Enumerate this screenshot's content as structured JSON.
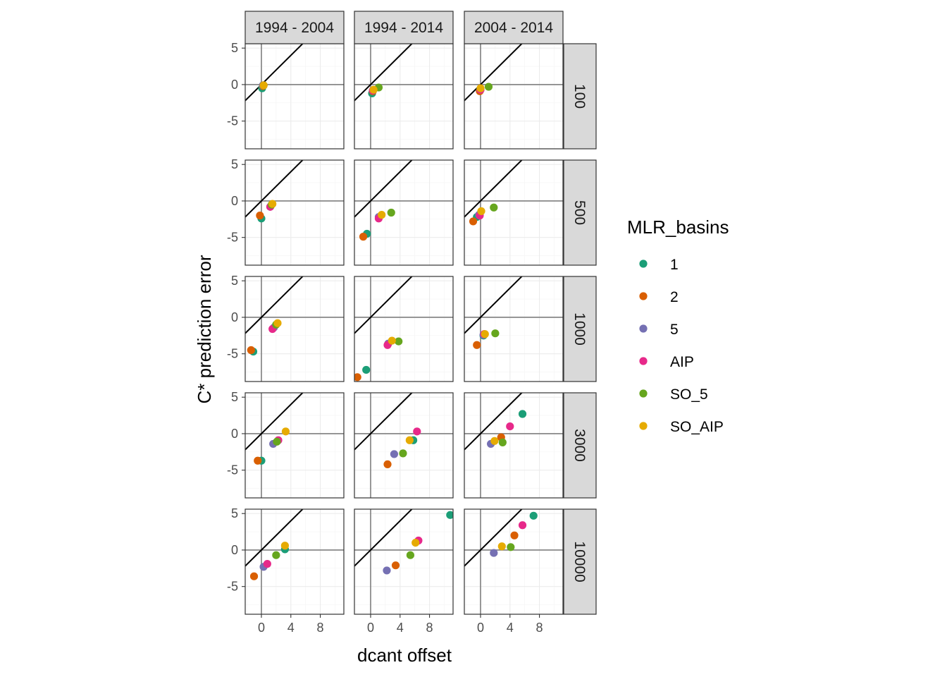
{
  "chart_data": {
    "type": "scatter",
    "title": "",
    "xlabel": "dcant offset",
    "ylabel": "C* prediction error",
    "xlim": [
      -2.2,
      11.2
    ],
    "ylim": [
      -8.8,
      5.6
    ],
    "xticks": [
      0,
      4,
      8
    ],
    "yticks": [
      -5,
      0,
      5
    ],
    "grid": true,
    "reference_lines": {
      "h": 0,
      "v": 0,
      "diagonal_slope": 1
    },
    "col_facets": [
      "1994 - 2004",
      "1994 - 2014",
      "2004 - 2014"
    ],
    "row_facets": [
      "100",
      "500",
      "1000",
      "3000",
      "10000"
    ],
    "legend": {
      "title": "MLR_basins",
      "position": "right",
      "entries": [
        {
          "name": "1",
          "color": "#1B9E77"
        },
        {
          "name": "2",
          "color": "#D95F02"
        },
        {
          "name": "5",
          "color": "#7570B3"
        },
        {
          "name": "AIP",
          "color": "#E7298A"
        },
        {
          "name": "SO_5",
          "color": "#66A61E"
        },
        {
          "name": "SO_AIP",
          "color": "#E6AB02"
        }
      ]
    },
    "panels": [
      {
        "row": "100",
        "col": "1994 - 2004",
        "points": [
          {
            "basin": "1",
            "x": 0.1,
            "y": -0.5
          },
          {
            "basin": "2",
            "x": 0.2,
            "y": -0.2
          },
          {
            "basin": "5",
            "x": 0.2,
            "y": -0.1
          },
          {
            "basin": "AIP",
            "x": 0.3,
            "y": -0.1
          },
          {
            "basin": "SO_5",
            "x": 0.3,
            "y": -0.1
          },
          {
            "basin": "SO_AIP",
            "x": 0.3,
            "y": -0.1
          }
        ]
      },
      {
        "row": "100",
        "col": "1994 - 2014",
        "points": [
          {
            "basin": "1",
            "x": 0.2,
            "y": -1.2
          },
          {
            "basin": "2",
            "x": 0.3,
            "y": -0.9
          },
          {
            "basin": "5",
            "x": 0.3,
            "y": -0.8
          },
          {
            "basin": "AIP",
            "x": 0.3,
            "y": -0.8
          },
          {
            "basin": "SO_5",
            "x": 1.1,
            "y": -0.4
          },
          {
            "basin": "SO_AIP",
            "x": 0.4,
            "y": -0.7
          }
        ]
      },
      {
        "row": "100",
        "col": "2004 - 2014",
        "points": [
          {
            "basin": "1",
            "x": -0.1,
            "y": -0.8
          },
          {
            "basin": "2",
            "x": -0.1,
            "y": -0.9
          },
          {
            "basin": "5",
            "x": 0.0,
            "y": -0.7
          },
          {
            "basin": "AIP",
            "x": 0.0,
            "y": -0.7
          },
          {
            "basin": "SO_5",
            "x": 1.1,
            "y": -0.3
          },
          {
            "basin": "SO_AIP",
            "x": 0.0,
            "y": -0.5
          }
        ]
      },
      {
        "row": "500",
        "col": "1994 - 2004",
        "points": [
          {
            "basin": "1",
            "x": 0.0,
            "y": -2.4
          },
          {
            "basin": "2",
            "x": -0.2,
            "y": -2.0
          },
          {
            "basin": "5",
            "x": 1.2,
            "y": -0.8
          },
          {
            "basin": "AIP",
            "x": 1.2,
            "y": -0.8
          },
          {
            "basin": "SO_5",
            "x": 1.4,
            "y": -0.5
          },
          {
            "basin": "SO_AIP",
            "x": 1.5,
            "y": -0.4
          }
        ]
      },
      {
        "row": "500",
        "col": "1994 - 2014",
        "points": [
          {
            "basin": "1",
            "x": -0.5,
            "y": -4.5
          },
          {
            "basin": "2",
            "x": -1.0,
            "y": -4.9
          },
          {
            "basin": "5",
            "x": 1.1,
            "y": -2.2
          },
          {
            "basin": "AIP",
            "x": 1.1,
            "y": -2.4
          },
          {
            "basin": "SO_5",
            "x": 2.8,
            "y": -1.6
          },
          {
            "basin": "SO_AIP",
            "x": 1.5,
            "y": -1.9
          }
        ]
      },
      {
        "row": "500",
        "col": "2004 - 2014",
        "points": [
          {
            "basin": "1",
            "x": -0.5,
            "y": -2.2
          },
          {
            "basin": "2",
            "x": -1.0,
            "y": -2.8
          },
          {
            "basin": "5",
            "x": -0.2,
            "y": -1.9
          },
          {
            "basin": "AIP",
            "x": -0.1,
            "y": -2.0
          },
          {
            "basin": "SO_5",
            "x": 1.8,
            "y": -0.9
          },
          {
            "basin": "SO_AIP",
            "x": 0.1,
            "y": -1.4
          }
        ]
      },
      {
        "row": "1000",
        "col": "1994 - 2004",
        "points": [
          {
            "basin": "1",
            "x": -1.1,
            "y": -4.7
          },
          {
            "basin": "2",
            "x": -1.4,
            "y": -4.5
          },
          {
            "basin": "5",
            "x": 1.7,
            "y": -1.4
          },
          {
            "basin": "AIP",
            "x": 1.5,
            "y": -1.6
          },
          {
            "basin": "SO_5",
            "x": 2.0,
            "y": -1.0
          },
          {
            "basin": "SO_AIP",
            "x": 2.2,
            "y": -0.8
          }
        ]
      },
      {
        "row": "1000",
        "col": "1994 - 2014",
        "points": [
          {
            "basin": "1",
            "x": -0.6,
            "y": -7.2
          },
          {
            "basin": "2",
            "x": -1.8,
            "y": -8.2
          },
          {
            "basin": "5",
            "x": 2.4,
            "y": -3.6
          },
          {
            "basin": "AIP",
            "x": 2.3,
            "y": -3.8
          },
          {
            "basin": "SO_5",
            "x": 3.8,
            "y": -3.3
          },
          {
            "basin": "SO_AIP",
            "x": 2.9,
            "y": -3.2
          }
        ]
      },
      {
        "row": "1000",
        "col": "2004 - 2014",
        "points": [
          {
            "basin": "1",
            "x": 0.4,
            "y": -2.5
          },
          {
            "basin": "2",
            "x": -0.5,
            "y": -3.8
          },
          {
            "basin": "5",
            "x": 0.4,
            "y": -2.4
          },
          {
            "basin": "AIP",
            "x": 0.5,
            "y": -2.3
          },
          {
            "basin": "SO_5",
            "x": 2.0,
            "y": -2.2
          },
          {
            "basin": "SO_AIP",
            "x": 0.6,
            "y": -2.3
          }
        ]
      },
      {
        "row": "3000",
        "col": "1994 - 2004",
        "points": [
          {
            "basin": "1",
            "x": 0.0,
            "y": -3.7
          },
          {
            "basin": "2",
            "x": -0.5,
            "y": -3.7
          },
          {
            "basin": "5",
            "x": 1.6,
            "y": -1.4
          },
          {
            "basin": "AIP",
            "x": 2.3,
            "y": -0.9
          },
          {
            "basin": "SO_5",
            "x": 2.1,
            "y": -1.1
          },
          {
            "basin": "SO_AIP",
            "x": 3.3,
            "y": 0.3
          }
        ]
      },
      {
        "row": "3000",
        "col": "1994 - 2014",
        "points": [
          {
            "basin": "1",
            "x": 5.8,
            "y": -0.9
          },
          {
            "basin": "2",
            "x": 2.3,
            "y": -4.2
          },
          {
            "basin": "5",
            "x": 3.2,
            "y": -2.8
          },
          {
            "basin": "AIP",
            "x": 6.3,
            "y": 0.3
          },
          {
            "basin": "SO_5",
            "x": 4.4,
            "y": -2.7
          },
          {
            "basin": "SO_AIP",
            "x": 5.3,
            "y": -0.9
          }
        ]
      },
      {
        "row": "3000",
        "col": "2004 - 2014",
        "points": [
          {
            "basin": "1",
            "x": 5.7,
            "y": 2.7
          },
          {
            "basin": "2",
            "x": 2.8,
            "y": -0.5
          },
          {
            "basin": "5",
            "x": 1.4,
            "y": -1.4
          },
          {
            "basin": "AIP",
            "x": 4.0,
            "y": 1.0
          },
          {
            "basin": "SO_5",
            "x": 3.0,
            "y": -1.2
          },
          {
            "basin": "SO_AIP",
            "x": 1.9,
            "y": -1.0
          }
        ]
      },
      {
        "row": "10000",
        "col": "1994 - 2004",
        "points": [
          {
            "basin": "1",
            "x": 3.2,
            "y": 0.1
          },
          {
            "basin": "2",
            "x": -1.0,
            "y": -3.6
          },
          {
            "basin": "5",
            "x": 0.3,
            "y": -2.3
          },
          {
            "basin": "AIP",
            "x": 0.8,
            "y": -1.9
          },
          {
            "basin": "SO_5",
            "x": 2.0,
            "y": -0.7
          },
          {
            "basin": "SO_AIP",
            "x": 3.2,
            "y": 0.6
          }
        ]
      },
      {
        "row": "10000",
        "col": "1994 - 2014",
        "points": [
          {
            "basin": "1",
            "x": 10.8,
            "y": 4.8
          },
          {
            "basin": "2",
            "x": 3.4,
            "y": -2.1
          },
          {
            "basin": "5",
            "x": 2.2,
            "y": -2.8
          },
          {
            "basin": "AIP",
            "x": 6.5,
            "y": 1.3
          },
          {
            "basin": "SO_5",
            "x": 5.4,
            "y": -0.7
          },
          {
            "basin": "SO_AIP",
            "x": 6.1,
            "y": 1.0
          }
        ]
      },
      {
        "row": "10000",
        "col": "2004 - 2014",
        "points": [
          {
            "basin": "1",
            "x": 7.2,
            "y": 4.7
          },
          {
            "basin": "2",
            "x": 4.6,
            "y": 2.0
          },
          {
            "basin": "5",
            "x": 1.8,
            "y": -0.4
          },
          {
            "basin": "AIP",
            "x": 5.7,
            "y": 3.4
          },
          {
            "basin": "SO_5",
            "x": 4.1,
            "y": 0.4
          },
          {
            "basin": "SO_AIP",
            "x": 2.9,
            "y": 0.5
          }
        ]
      }
    ]
  }
}
